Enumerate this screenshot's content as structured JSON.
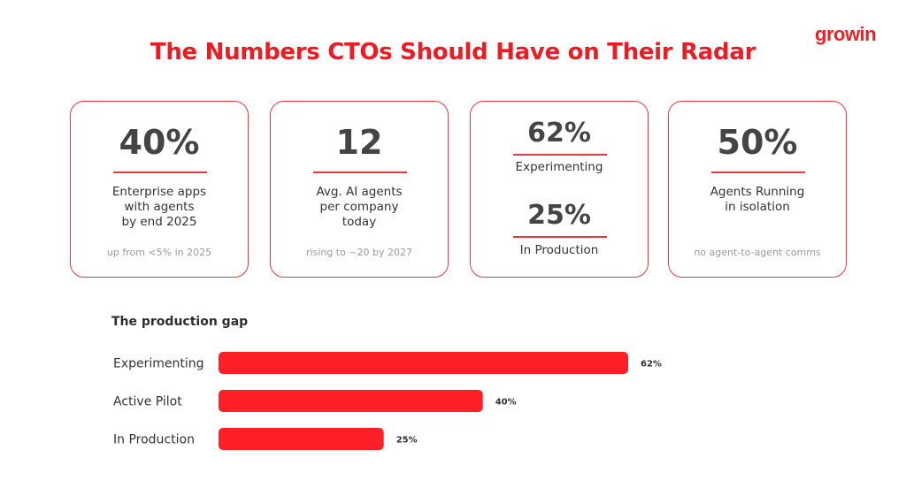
{
  "brand": {
    "logo": "growin",
    "accent": "#ea1c24"
  },
  "title": "The Numbers CTOs Should Have on Their Radar",
  "cards": [
    {
      "value": "40%",
      "desc_lines": [
        "Enterprise apps",
        "with agents",
        "by end 2025"
      ],
      "note": "up from <5% in 2025"
    },
    {
      "value": "12",
      "desc_lines": [
        "Avg. AI agents",
        "per company",
        "today"
      ],
      "note": "rising to ~20 by 2027"
    },
    {
      "value_a": "62%",
      "label_a": "Experimenting",
      "value_b": "25%",
      "label_b": "In Production"
    },
    {
      "value": "50%",
      "desc_lines": [
        "Agents Running",
        "in isolation"
      ],
      "note": "no agent-to-agent comms"
    }
  ],
  "section_title": "The production gap",
  "chart_data": {
    "type": "bar",
    "orientation": "horizontal",
    "title": "The production gap",
    "categories": [
      "Experimenting",
      "Active Pilot",
      "In Production"
    ],
    "values": [
      62,
      40,
      25
    ],
    "value_labels": [
      "62%",
      "40%",
      "25%"
    ],
    "unit": "%",
    "bar_color": "#ff1f26",
    "xlim": [
      0,
      62
    ],
    "grid": false,
    "legend": "none"
  }
}
